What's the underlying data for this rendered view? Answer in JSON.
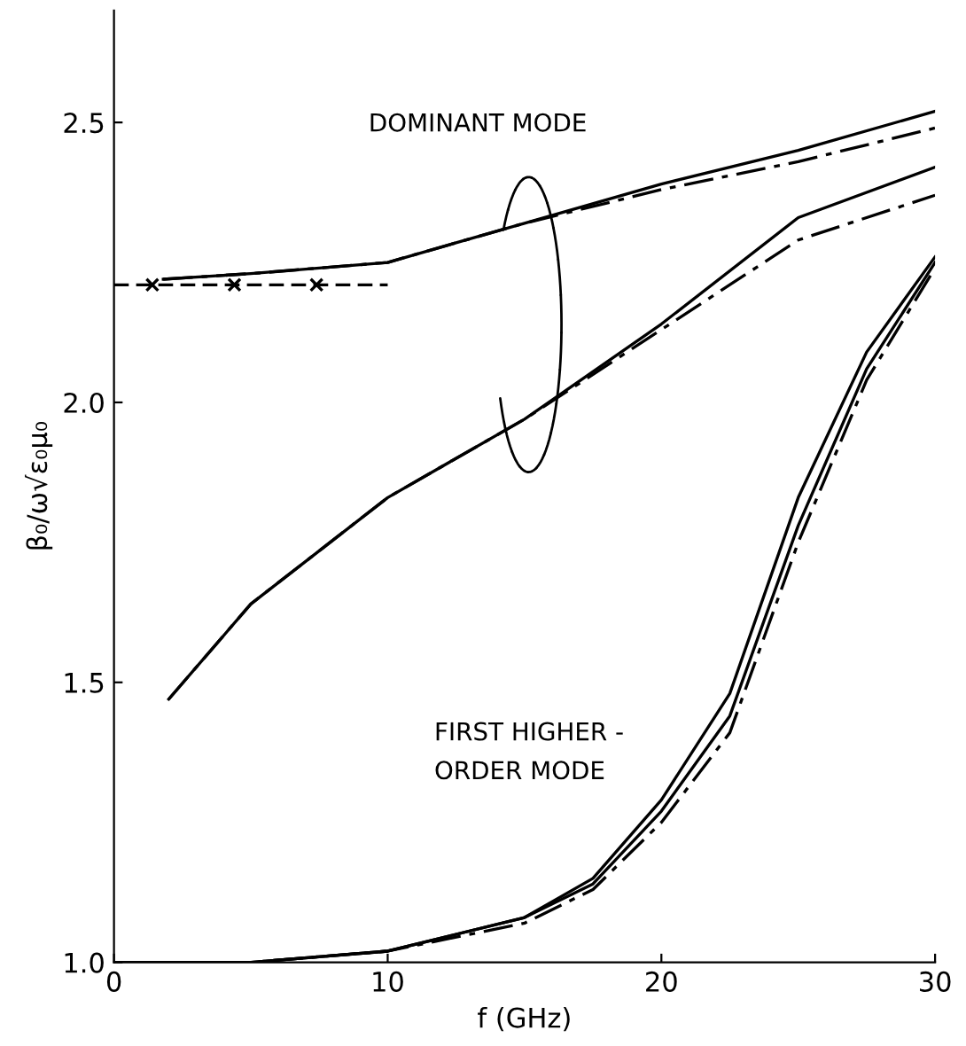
{
  "chart_data": {
    "type": "line",
    "xlabel": "f (GHz)",
    "ylabel": "β₀/ω√ε₀μ₀",
    "xlim": [
      0,
      30
    ],
    "ylim": [
      1.0,
      2.7
    ],
    "xticks": [
      0,
      10,
      20,
      30
    ],
    "yticks": [
      {
        "value": 1.0,
        "label": "1.0"
      },
      {
        "value": 1.5,
        "label": "1.5"
      },
      {
        "value": 2.0,
        "label": "2.0"
      },
      {
        "value": 2.5,
        "label": "2.5"
      }
    ],
    "grid": false,
    "legend": false,
    "series": [
      {
        "color": "#000000",
        "line_style": "solid",
        "x": [
          1.8,
          5,
          10,
          15,
          20,
          25,
          30
        ],
        "values": [
          2.22,
          2.23,
          2.25,
          2.32,
          2.39,
          2.45,
          2.52
        ]
      },
      {
        "color": "#000000",
        "line_style": "dashdot",
        "x": [
          1.8,
          5,
          10,
          15,
          20,
          25,
          30
        ],
        "values": [
          2.22,
          2.23,
          2.25,
          2.32,
          2.38,
          2.43,
          2.49
        ]
      },
      {
        "color": "#000000",
        "line_style": "dashed",
        "x": [
          0,
          10
        ],
        "values": [
          2.21,
          2.21
        ]
      },
      {
        "type": "scatter",
        "marker": "cross",
        "color": "#000000",
        "x": [
          1.4,
          4.4,
          7.4
        ],
        "values": [
          2.21,
          2.21,
          2.21
        ]
      },
      {
        "color": "#000000",
        "line_style": "solid",
        "x": [
          2,
          5,
          10,
          15,
          20,
          25,
          30
        ],
        "values": [
          1.47,
          1.64,
          1.83,
          1.97,
          2.14,
          2.33,
          2.42
        ]
      },
      {
        "color": "#000000",
        "line_style": "dashdot",
        "x": [
          2,
          5,
          10,
          15,
          20,
          25,
          30
        ],
        "values": [
          1.47,
          1.64,
          1.83,
          1.97,
          2.13,
          2.29,
          2.37
        ]
      },
      {
        "color": "#000000",
        "line_style": "solid",
        "x": [
          0,
          5,
          10,
          15,
          17.5,
          20,
          22.5,
          25,
          27.5,
          30
        ],
        "values": [
          1.0,
          1.0,
          1.02,
          1.08,
          1.15,
          1.29,
          1.48,
          1.83,
          2.09,
          2.26
        ]
      },
      {
        "color": "#000000",
        "line_style": "solid",
        "x": [
          0,
          5,
          10,
          15,
          17.5,
          20,
          22.5,
          25,
          27.5,
          30
        ],
        "values": [
          1.0,
          1.0,
          1.02,
          1.08,
          1.14,
          1.27,
          1.44,
          1.78,
          2.06,
          2.25
        ]
      },
      {
        "color": "#000000",
        "line_style": "dashdot",
        "x": [
          0,
          5,
          10,
          15,
          17.5,
          20,
          22.5,
          25,
          27.5,
          30
        ],
        "values": [
          1.0,
          1.0,
          1.02,
          1.07,
          1.13,
          1.25,
          1.41,
          1.75,
          2.04,
          2.24
        ]
      }
    ],
    "annotations": [
      "DOMINANT MODE",
      "FIRST HIGHER -\nORDER MODE"
    ]
  }
}
